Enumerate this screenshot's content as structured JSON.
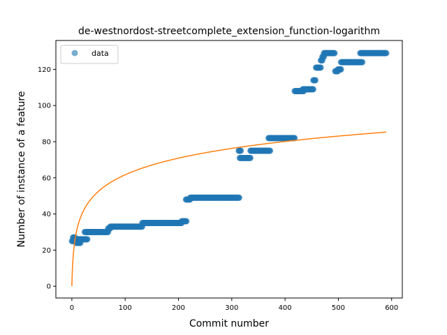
{
  "chart_data": {
    "type": "scatter",
    "title": "de-westnordost-streetcomplete_extension_function-logarithm",
    "xlabel": "Commit number",
    "ylabel": "Number of instance of a feature",
    "xlim": [
      -30,
      620
    ],
    "ylim": [
      -6.5,
      136
    ],
    "xticks": [
      0,
      100,
      200,
      300,
      400,
      500,
      600
    ],
    "yticks": [
      0,
      20,
      40,
      60,
      80,
      100,
      120
    ],
    "legend": {
      "position": "top-left",
      "entries": [
        "data"
      ]
    },
    "grid": false,
    "series": [
      {
        "name": "data",
        "kind": "points",
        "color": "#1f77b4",
        "segments": [
          {
            "x0": 0,
            "x1": 4,
            "y": 25
          },
          {
            "x0": 2,
            "x1": 6,
            "y": 27
          },
          {
            "x0": 5,
            "x1": 15,
            "y": 26
          },
          {
            "x0": 8,
            "x1": 16,
            "y": 24
          },
          {
            "x0": 15,
            "x1": 29,
            "y": 26
          },
          {
            "x0": 24,
            "x1": 68,
            "y": 30
          },
          {
            "x0": 68,
            "x1": 72,
            "y": 32
          },
          {
            "x0": 72,
            "x1": 132,
            "y": 33
          },
          {
            "x0": 132,
            "x1": 206,
            "y": 35
          },
          {
            "x0": 206,
            "x1": 215,
            "y": 36
          },
          {
            "x0": 214,
            "x1": 222,
            "y": 48
          },
          {
            "x0": 222,
            "x1": 314,
            "y": 49
          },
          {
            "x0": 313,
            "x1": 317,
            "y": 75
          },
          {
            "x0": 315,
            "x1": 335,
            "y": 71
          },
          {
            "x0": 335,
            "x1": 372,
            "y": 75
          },
          {
            "x0": 369,
            "x1": 418,
            "y": 82
          },
          {
            "x0": 418,
            "x1": 435,
            "y": 108
          },
          {
            "x0": 433,
            "x1": 453,
            "y": 109
          },
          {
            "x0": 453,
            "x1": 457,
            "y": 114
          },
          {
            "x0": 458,
            "x1": 467,
            "y": 121
          },
          {
            "x0": 467,
            "x1": 470,
            "y": 125
          },
          {
            "x0": 470,
            "x1": 473,
            "y": 127
          },
          {
            "x0": 473,
            "x1": 493,
            "y": 129
          },
          {
            "x0": 494,
            "x1": 499,
            "y": 119
          },
          {
            "x0": 499,
            "x1": 505,
            "y": 120
          },
          {
            "x0": 505,
            "x1": 545,
            "y": 124
          },
          {
            "x0": 541,
            "x1": 590,
            "y": 129
          }
        ]
      },
      {
        "name": "",
        "kind": "line",
        "color": "#ff7f0e",
        "function": "logarithm",
        "x": [
          0,
          590
        ],
        "y": [
          0,
          85.3
        ]
      }
    ]
  }
}
